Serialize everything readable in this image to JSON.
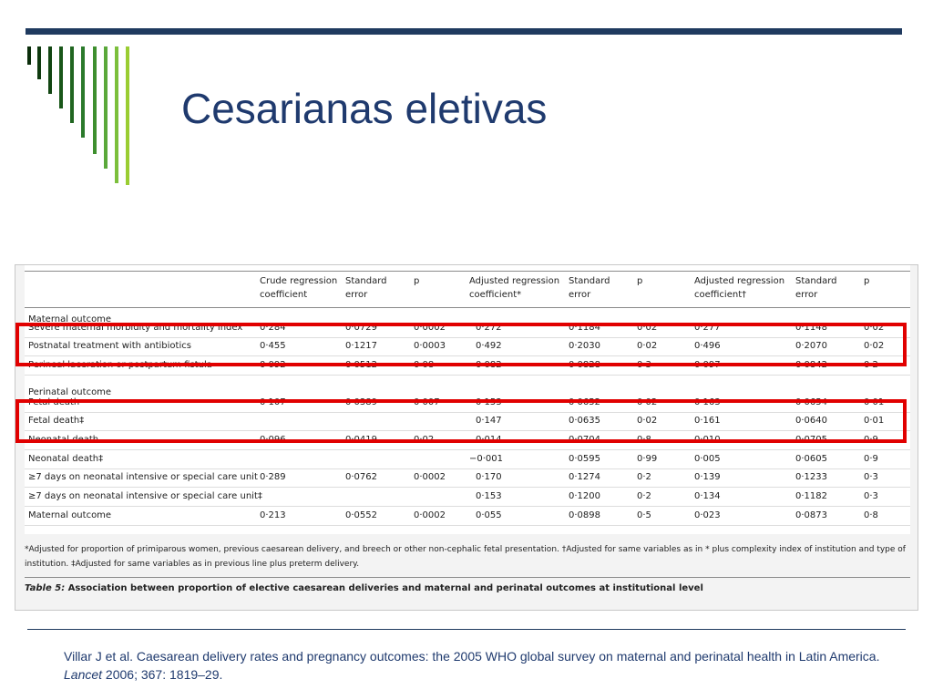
{
  "title": "Cesarianas eletivas",
  "decor_bar_colors": [
    "#0b2e0b",
    "#0f3a0f",
    "#124612",
    "#195719",
    "#216621",
    "#2b7a2b",
    "#3e8f2e",
    "#5aa83a",
    "#7cbf3c",
    "#9acd32"
  ],
  "table": {
    "headers": [
      {
        "line1": "Crude regression",
        "line2": "coefficient"
      },
      {
        "line1": "Standard",
        "line2": "error"
      },
      {
        "line1": "p",
        "line2": ""
      },
      {
        "line1": "Adjusted regression",
        "line2": "coefficient*"
      },
      {
        "line1": "Standard",
        "line2": "error"
      },
      {
        "line1": "p",
        "line2": ""
      },
      {
        "line1": "Adjusted regression",
        "line2": "coefficient†"
      },
      {
        "line1": "Standard",
        "line2": "error"
      },
      {
        "line1": "p",
        "line2": ""
      }
    ],
    "sections": {
      "maternal": "Maternal outcome",
      "perinatal": "Perinatal outcome"
    },
    "rows": [
      {
        "label": "Severe maternal morbidity and mortality index",
        "c": [
          "0·284",
          "0·0729",
          "0·0002",
          "0·272",
          "0·1184",
          "0·02",
          "0·277",
          "0·1148",
          "0·02"
        ]
      },
      {
        "label": "Postnatal treatment with antibiotics",
        "c": [
          "0·455",
          "0·1217",
          "0·0003",
          "0·492",
          "0·2030",
          "0·02",
          "0·496",
          "0·2070",
          "0·02"
        ]
      },
      {
        "label": "Perineal laceration or postpartum fistula",
        "c": [
          "0·092",
          "0·0512",
          "0·08",
          "0·082",
          "0·0828",
          "0·3",
          "0·097",
          "0·0842",
          "0·2"
        ]
      },
      {
        "label": "Fetal death",
        "c": [
          "0·107",
          "0·0389",
          "0·007",
          "0·153",
          "0·0652",
          "0·02",
          "0·163",
          "0·0654",
          "0·01"
        ]
      },
      {
        "label": "Fetal death‡",
        "c": [
          "",
          "",
          "",
          "0·147",
          "0·0635",
          "0·02",
          "0·161",
          "0·0640",
          "0·01"
        ]
      },
      {
        "label": "Neonatal death",
        "c": [
          "0·096",
          "0·0419",
          "0·02",
          "0·014",
          "0·0704",
          "0·8",
          "0·010",
          "0·0705",
          "0·9"
        ]
      },
      {
        "label": "Neonatal death‡",
        "c": [
          "",
          "",
          "",
          "−0·001",
          "0·0595",
          "0·99",
          "0·005",
          "0·0605",
          "0·9"
        ]
      },
      {
        "label": "≥7 days on neonatal intensive or special care unit",
        "c": [
          "0·289",
          "0·0762",
          "0·0002",
          "0·170",
          "0·1274",
          "0·2",
          "0·139",
          "0·1233",
          "0·3"
        ]
      },
      {
        "label": "≥7 days on neonatal intensive or special care unit‡",
        "c": [
          "",
          "",
          "",
          "0·153",
          "0·1200",
          "0·2",
          "0·134",
          "0·1182",
          "0·3"
        ]
      },
      {
        "label": "Maternal outcome",
        "c": [
          "0·213",
          "0·0552",
          "0·0002",
          "0·055",
          "0·0898",
          "0·5",
          "0·023",
          "0·0873",
          "0·8"
        ]
      }
    ],
    "footnote": "*Adjusted for proportion of primiparous women, previous caesarean delivery, and breech or other non-cephalic fetal presentation. †Adjusted for same variables as in * plus complexity index of institution and type of institution. ‡Adjusted for same variables as in previous line plus preterm delivery.",
    "caption_label": "Table 5:",
    "caption_text": " Association between proportion of elective caesarean deliveries and maternal and perinatal outcomes at institutional level"
  },
  "citation": {
    "text1": "Villar J et al. Caesarean delivery rates and pregnancy outcomes: the 2005 WHO global survey on maternal and perinatal health in Latin America. ",
    "journal": "Lancet",
    "text2": " 2006; 367: 1819–29."
  },
  "highlight_color": "#e10000"
}
